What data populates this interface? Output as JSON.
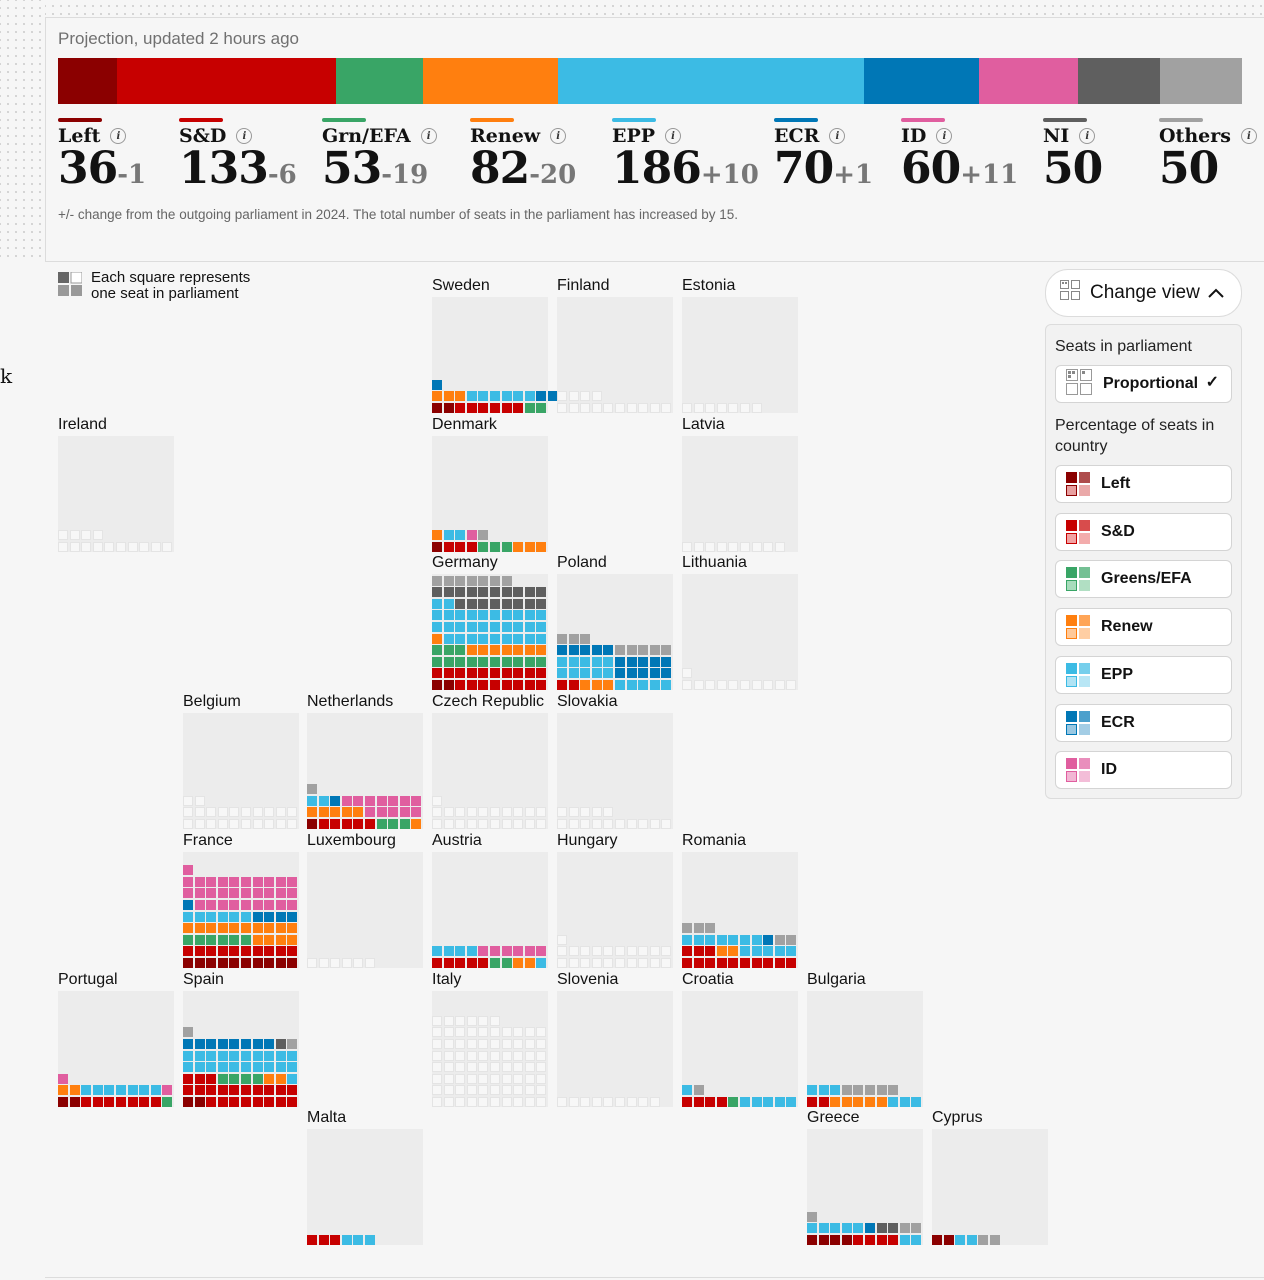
{
  "header": {
    "updated": "Projection, updated 2 hours ago",
    "note": "+/- change from the outgoing parliament in 2024. The total number of seats in the parliament has increased by 15."
  },
  "parties": [
    {
      "key": "left",
      "name": "Left",
      "seats": "36",
      "change": "-1",
      "color": "#8b0000",
      "weight": 36
    },
    {
      "key": "sd",
      "name": "S&D",
      "seats": "133",
      "change": "-6",
      "color": "#c70000",
      "weight": 133
    },
    {
      "key": "grn",
      "name": "Grn/EFA",
      "seats": "53",
      "change": "-19",
      "color": "#39a566",
      "weight": 53
    },
    {
      "key": "renew",
      "name": "Renew",
      "seats": "82",
      "change": "-20",
      "color": "#ff7f0f",
      "weight": 82
    },
    {
      "key": "epp",
      "name": "EPP",
      "seats": "186",
      "change": "+10",
      "color": "#3cbbe4",
      "weight": 186
    },
    {
      "key": "ecr",
      "name": "ECR",
      "seats": "70",
      "change": "+1",
      "color": "#0077b6",
      "weight": 70
    },
    {
      "key": "id",
      "name": "ID",
      "seats": "60",
      "change": "+11",
      "color": "#e05e9f",
      "weight": 60
    },
    {
      "key": "ni",
      "name": "NI",
      "seats": "50",
      "change": "",
      "color": "#5f5f5f",
      "weight": 50
    },
    {
      "key": "others",
      "name": "Others",
      "seats": "50",
      "change": "",
      "color": "#a1a1a1",
      "weight": 50
    }
  ],
  "map_legend": {
    "line1": "Each square represents",
    "line2": "one seat in parliament"
  },
  "stray_char": "k",
  "countries": [
    {
      "name": "Sweden",
      "seats": [
        [
          "left",
          2
        ],
        [
          "sd",
          6
        ],
        [
          "grn",
          2
        ]
      ],
      "row2": [
        [
          "renew",
          3
        ],
        [
          "epp",
          6
        ],
        [
          "ecr",
          2
        ]
      ],
      "row3": [
        [
          "ecr",
          1
        ]
      ],
      "empty": 0
    },
    {
      "name": "Finland",
      "empty": 14
    },
    {
      "name": "Estonia",
      "empty": 7
    },
    {
      "name": "Ireland",
      "empty": 14
    },
    {
      "name": "Denmark"
    },
    {
      "name": "Latvia",
      "empty": 9
    },
    {
      "name": "Germany"
    },
    {
      "name": "Poland"
    },
    {
      "name": "Lithuania",
      "empty": 11
    },
    {
      "name": "Belgium",
      "empty": 22
    },
    {
      "name": "Netherlands"
    },
    {
      "name": "Czech Republic",
      "empty": 21
    },
    {
      "name": "Slovakia",
      "empty": 15
    },
    {
      "name": "France"
    },
    {
      "name": "Luxembourg",
      "empty": 6
    },
    {
      "name": "Austria"
    },
    {
      "name": "Hungary",
      "empty": 21
    },
    {
      "name": "Romania"
    },
    {
      "name": "Portugal"
    },
    {
      "name": "Spain"
    },
    {
      "name": "Italy",
      "empty": 76
    },
    {
      "name": "Slovenia",
      "empty": 9
    },
    {
      "name": "Croatia"
    },
    {
      "name": "Bulgaria"
    },
    {
      "name": "Malta"
    },
    {
      "name": "Greece"
    },
    {
      "name": "Cyprus"
    }
  ],
  "controls": {
    "change_view": "Change view",
    "seats_heading": "Seats in parliament",
    "proportional": "Proportional",
    "percentage_heading": "Percentage of seats in country",
    "options": [
      {
        "label": "Left",
        "color": "#8b0000",
        "light": "#e8a0a0"
      },
      {
        "label": "S&D",
        "color": "#c70000",
        "light": "#f2a3a3"
      },
      {
        "label": "Greens/EFA",
        "color": "#39a566",
        "light": "#a8dcbc"
      },
      {
        "label": "Renew",
        "color": "#ff7f0f",
        "light": "#ffc999"
      },
      {
        "label": "EPP",
        "color": "#3cbbe4",
        "light": "#b0e3f4"
      },
      {
        "label": "ECR",
        "color": "#0077b6",
        "light": "#99c8e2"
      },
      {
        "label": "ID",
        "color": "#e05e9f",
        "light": "#f2b6d4"
      }
    ]
  }
}
